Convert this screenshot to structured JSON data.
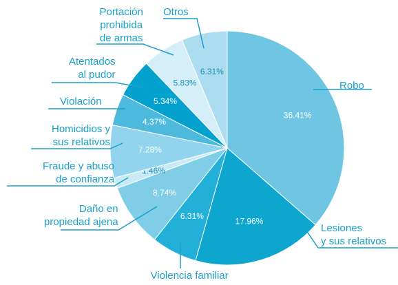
{
  "chart_data": {
    "type": "pie",
    "categories": [
      "Robo",
      "Lesiones\ny sus relativos",
      "Violencia familiar",
      "Daño en\npropiedad ajena",
      "Fraude y abuso\nde confianza",
      "Homicidios y\nsus relativos",
      "Violación",
      "Atentados\nal pudor",
      "Portación\nprohibida\nde armas",
      "Otros"
    ],
    "values": [
      36.41,
      17.96,
      6.31,
      8.74,
      1.46,
      7.28,
      4.37,
      5.34,
      5.83,
      6.31
    ],
    "value_labels": [
      "36.41%",
      "17.96%",
      "6.31%",
      "8.74%",
      "1.46%",
      "7.28%",
      "4.37%",
      "5.34%",
      "5.83%",
      "6.31%"
    ],
    "colors": [
      "#6ec6e2",
      "#0ea5cf",
      "#22b0d8",
      "#7fcde7",
      "#c9e9f5",
      "#92d4ed",
      "#4dbadd",
      "#03a1cd",
      "#d5eff8",
      "#abdcef"
    ]
  }
}
